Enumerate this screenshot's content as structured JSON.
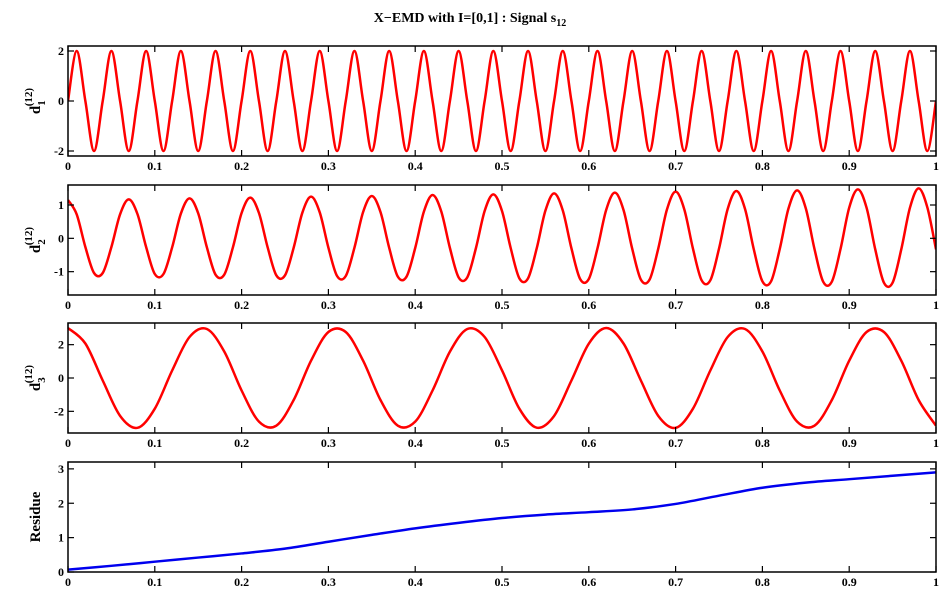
{
  "chart_data": [
    {
      "type": "line",
      "title": "X−EMD with I=[0,1] : Signal s",
      "title_sub": "12",
      "ylabel": "d",
      "ylabel_sub": "1",
      "ylabel_sup": "(12)",
      "x": [
        0,
        0.01,
        0.02,
        0.03,
        0.04,
        0.05,
        0.06,
        0.07,
        0.08,
        0.09,
        0.1,
        0.11,
        0.12,
        0.13,
        0.14,
        0.15,
        0.16,
        0.17,
        0.18,
        0.19,
        0.2,
        0.21,
        0.22,
        0.23,
        0.24,
        0.25,
        0.26,
        0.27,
        0.28,
        0.29,
        0.3,
        0.31,
        0.32,
        0.33,
        0.34,
        0.35,
        0.36,
        0.37,
        0.38,
        0.39,
        0.4,
        0.41,
        0.42,
        0.43,
        0.44,
        0.45,
        0.46,
        0.47,
        0.48,
        0.49,
        0.5,
        0.51,
        0.52,
        0.53,
        0.54,
        0.55,
        0.56,
        0.57,
        0.58,
        0.59,
        0.6,
        0.61,
        0.62,
        0.63,
        0.64,
        0.65,
        0.66,
        0.67,
        0.68,
        0.69,
        0.7,
        0.71,
        0.72,
        0.73,
        0.74,
        0.75,
        0.76,
        0.77,
        0.78,
        0.79,
        0.8,
        0.81,
        0.82,
        0.83,
        0.84,
        0.85,
        0.86,
        0.87,
        0.88,
        0.89,
        0.9,
        0.91,
        0.92,
        0.93,
        0.94,
        0.95,
        0.96,
        0.97,
        0.98,
        0.99,
        1
      ],
      "series": [
        {
          "color": "#ff0000",
          "values": [
            0,
            2,
            0,
            -2,
            0,
            2,
            0,
            -2,
            0,
            2,
            0,
            -2,
            0,
            2,
            0,
            -2,
            0,
            2,
            0,
            -2,
            0,
            2,
            0,
            -2,
            0,
            2,
            0,
            -2,
            0,
            2,
            0,
            -2,
            0,
            2,
            0,
            -2,
            0,
            2,
            0,
            -2,
            0,
            2,
            0,
            -2,
            0,
            2,
            0,
            -2,
            0,
            2,
            0,
            -2,
            0,
            2,
            0,
            -2,
            0,
            2,
            0,
            -2,
            0,
            2,
            0,
            -2,
            0,
            2,
            0,
            -2,
            0,
            2,
            0,
            -2,
            0,
            2,
            0,
            -2,
            0,
            2,
            0,
            -2,
            0,
            2,
            0,
            -2,
            0,
            2,
            0,
            -2,
            0,
            2,
            0,
            -2,
            0,
            2,
            0,
            -2,
            0,
            2,
            0,
            -2,
            0
          ]
        }
      ],
      "xlim": [
        0,
        1
      ],
      "xticks": [
        0,
        0.1,
        0.2,
        0.3,
        0.4,
        0.5,
        0.6,
        0.7,
        0.8,
        0.9,
        1
      ],
      "ylim": [
        -2.2,
        2.2
      ],
      "yticks": [
        -2,
        0,
        2
      ]
    },
    {
      "type": "line",
      "ylabel": "d",
      "ylabel_sub": "2",
      "ylabel_sup": "(12)",
      "x": [
        0,
        0.01,
        0.02,
        0.03,
        0.04,
        0.05,
        0.06,
        0.07,
        0.08,
        0.09,
        0.1,
        0.11,
        0.12,
        0.13,
        0.14,
        0.15,
        0.16,
        0.17,
        0.18,
        0.19,
        0.2,
        0.21,
        0.22,
        0.23,
        0.24,
        0.25,
        0.26,
        0.27,
        0.28,
        0.29,
        0.3,
        0.31,
        0.32,
        0.33,
        0.34,
        0.35,
        0.36,
        0.37,
        0.38,
        0.39,
        0.4,
        0.41,
        0.42,
        0.43,
        0.44,
        0.45,
        0.46,
        0.47,
        0.48,
        0.49,
        0.5,
        0.51,
        0.52,
        0.53,
        0.54,
        0.55,
        0.56,
        0.57,
        0.58,
        0.59,
        0.6,
        0.61,
        0.62,
        0.63,
        0.64,
        0.65,
        0.66,
        0.67,
        0.68,
        0.69,
        0.7,
        0.71,
        0.72,
        0.73,
        0.74,
        0.75,
        0.76,
        0.77,
        0.78,
        0.79,
        0.8,
        0.81,
        0.82,
        0.83,
        0.84,
        0.85,
        0.86,
        0.87,
        0.88,
        0.89,
        0.9,
        0.91,
        0.92,
        0.93,
        0.94,
        0.95,
        0.96,
        0.97,
        0.98,
        0.99,
        1
      ],
      "series": [
        {
          "color": "#ff0000",
          "values": [
            1.15,
            0.72,
            -0.26,
            -1.04,
            -1.04,
            -0.26,
            0.72,
            1.17,
            0.73,
            -0.26,
            -1.07,
            -1.07,
            -0.27,
            0.74,
            1.2,
            0.75,
            -0.27,
            -1.09,
            -1.09,
            -0.27,
            0.76,
            1.22,
            0.76,
            -0.27,
            -1.11,
            -1.11,
            -0.28,
            0.77,
            1.25,
            0.78,
            -0.28,
            -1.13,
            -1.13,
            -0.28,
            0.79,
            1.27,
            0.79,
            -0.28,
            -1.15,
            -1.15,
            -0.29,
            0.8,
            1.3,
            0.81,
            -0.29,
            -1.17,
            -1.17,
            -0.29,
            0.82,
            1.32,
            0.82,
            -0.29,
            -1.2,
            -1.2,
            -0.3,
            0.83,
            1.35,
            0.84,
            -0.3,
            -1.22,
            -1.22,
            -0.3,
            0.85,
            1.37,
            0.85,
            -0.31,
            -1.24,
            -1.24,
            -0.31,
            0.86,
            1.4,
            0.87,
            -0.31,
            -1.26,
            -1.26,
            -0.31,
            0.88,
            1.42,
            0.88,
            -0.32,
            -1.29,
            -1.29,
            -0.32,
            0.89,
            1.44,
            0.9,
            -0.32,
            -1.3,
            -1.3,
            -0.32,
            0.92,
            1.47,
            0.92,
            -0.33,
            -1.33,
            -1.33,
            -0.33,
            0.92,
            1.5,
            0.93,
            -0.33
          ]
        }
      ],
      "xlim": [
        0,
        1
      ],
      "xticks": [
        0,
        0.1,
        0.2,
        0.3,
        0.4,
        0.5,
        0.6,
        0.7,
        0.8,
        0.9,
        1
      ],
      "ylim": [
        -1.7,
        1.6
      ],
      "yticks": [
        -1,
        0,
        1
      ]
    },
    {
      "type": "line",
      "ylabel": "d",
      "ylabel_sub": "3",
      "ylabel_sup": "(12)",
      "x": [
        0,
        0.02,
        0.04,
        0.06,
        0.08,
        0.1,
        0.12,
        0.14,
        0.16,
        0.18,
        0.2,
        0.22,
        0.24,
        0.26,
        0.28,
        0.3,
        0.32,
        0.34,
        0.36,
        0.38,
        0.4,
        0.42,
        0.44,
        0.46,
        0.48,
        0.5,
        0.52,
        0.54,
        0.56,
        0.58,
        0.6,
        0.62,
        0.64,
        0.66,
        0.68,
        0.7,
        0.72,
        0.74,
        0.76,
        0.78,
        0.8,
        0.82,
        0.84,
        0.86,
        0.88,
        0.9,
        0.92,
        0.94,
        0.96,
        0.98,
        1
      ],
      "series": [
        {
          "color": "#ff0000",
          "values": [
            3,
            2.07,
            -0.15,
            -2.27,
            -2.99,
            -1.84,
            0.45,
            2.46,
            2.94,
            1.59,
            -0.75,
            -2.62,
            -2.86,
            -1.32,
            1.04,
            2.76,
            2.76,
            1.04,
            -1.32,
            -2.86,
            -2.62,
            -0.75,
            1.58,
            2.94,
            2.46,
            0.46,
            -1.84,
            -2.98,
            -2.28,
            -0.15,
            2.06,
            3,
            2.07,
            -0.15,
            -2.27,
            -2.99,
            -1.84,
            0.45,
            2.46,
            2.94,
            1.59,
            -0.75,
            -2.62,
            -2.86,
            -1.32,
            1.04,
            2.76,
            2.76,
            1.04,
            -1.32,
            -2.86
          ]
        }
      ],
      "xlim": [
        0,
        1
      ],
      "xticks": [
        0,
        0.1,
        0.2,
        0.3,
        0.4,
        0.5,
        0.6,
        0.7,
        0.8,
        0.9,
        1
      ],
      "ylim": [
        -3.3,
        3.3
      ],
      "yticks": [
        -2,
        0,
        2
      ]
    },
    {
      "type": "line",
      "ylabel": "Residue",
      "x": [
        0,
        0.05,
        0.1,
        0.15,
        0.2,
        0.25,
        0.3,
        0.35,
        0.4,
        0.45,
        0.5,
        0.55,
        0.6,
        0.65,
        0.7,
        0.75,
        0.8,
        0.85,
        0.9,
        0.95,
        1
      ],
      "series": [
        {
          "color": "#0000ee",
          "values": [
            0.07,
            0.18,
            0.3,
            0.42,
            0.54,
            0.68,
            0.88,
            1.08,
            1.27,
            1.43,
            1.57,
            1.67,
            1.74,
            1.82,
            1.98,
            2.22,
            2.45,
            2.6,
            2.7,
            2.8,
            2.9
          ]
        }
      ],
      "xlim": [
        0,
        1
      ],
      "xticks": [
        0,
        0.1,
        0.2,
        0.3,
        0.4,
        0.5,
        0.6,
        0.7,
        0.8,
        0.9,
        1
      ],
      "ylim": [
        0,
        3.2
      ],
      "yticks": [
        0,
        1,
        2,
        3
      ]
    }
  ]
}
